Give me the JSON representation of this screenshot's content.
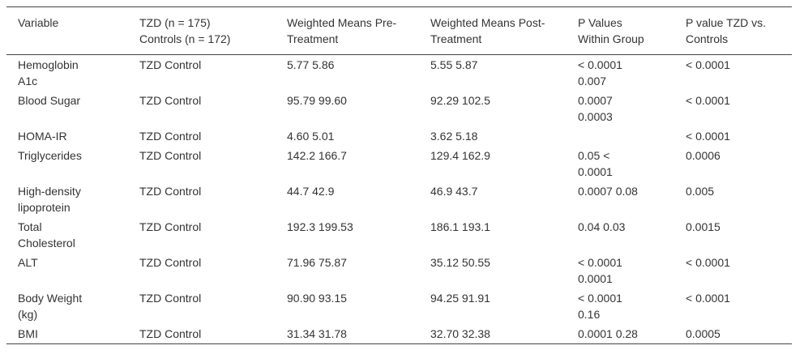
{
  "table": {
    "header": [
      [
        "Variable"
      ],
      [
        "TZD (n = 175)",
        "Controls (n = 172)"
      ],
      [
        "Weighted Means Pre-",
        "Treatment"
      ],
      [
        "Weighted Means Post-",
        "Treatment"
      ],
      [
        "P Values",
        "Within Group"
      ],
      [
        "P value TZD vs.",
        "Controls"
      ]
    ],
    "rows": [
      [
        "Hemoglobin A1c",
        "TZD Control",
        "5.77 5.86",
        "5.55 5.87",
        "< 0.0001 0.007",
        "< 0.0001"
      ],
      [
        "Blood Sugar",
        "TZD Control",
        "95.79 99.60",
        "92.29 102.5",
        "0.0007 0.0003",
        "< 0.0001"
      ],
      [
        "HOMA-IR",
        "TZD Control",
        "4.60 5.01",
        "3.62 5.18",
        null,
        "< 0.0001"
      ],
      [
        "Triglycerides",
        "TZD Control",
        "142.2 166.7",
        "129.4 162.9",
        "0.05 < 0.0001",
        "0.0006"
      ],
      [
        "High-density lipoprotein",
        "TZD Control",
        "44.7 42.9",
        "46.9 43.7",
        "0.0007 0.08",
        "0.005"
      ],
      [
        "Total Cholesterol",
        "TZD Control",
        "192.3 199.53",
        "186.1 193.1",
        "0.04 0.03",
        "0.0015"
      ],
      [
        "ALT",
        "TZD Control",
        "71.96 75.87",
        "35.12 50.55",
        "< 0.0001 0.0001",
        "< 0.0001"
      ],
      [
        "Body Weight (kg)",
        "TZD Control",
        "90.90 93.15",
        "94.25 91.91",
        "< 0.0001 0.16",
        "< 0.0001"
      ],
      [
        "BMI",
        "TZD Control",
        "31.34 31.78",
        "32.70 32.38",
        "0.0001 0.28",
        "0.0005"
      ]
    ]
  }
}
